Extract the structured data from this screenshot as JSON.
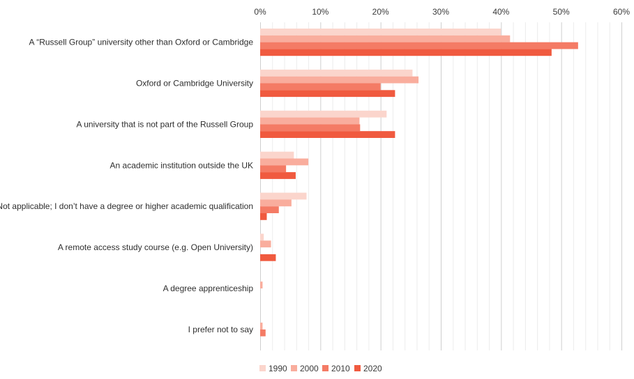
{
  "chart_data": {
    "type": "bar",
    "orientation": "horizontal",
    "title": "",
    "xlabel": "",
    "ylabel": "",
    "xlim": [
      0,
      60
    ],
    "x_ticks": [
      0,
      10,
      20,
      30,
      40,
      50,
      60
    ],
    "x_tick_labels": [
      "0%",
      "10%",
      "20%",
      "30%",
      "40%",
      "50%",
      "60%"
    ],
    "grid": true,
    "legend_position": "bottom",
    "categories": [
      "A “Russell Group” university other than Oxford or Cambridge",
      "Oxford or Cambridge University",
      "A university that is not part of the Russell Group",
      "An academic institution outside the UK",
      "Not applicable; I don’t have a degree or higher academic qualification",
      "A remote access study course (e.g. Open University)",
      "A degree apprenticeship",
      "I prefer not to say"
    ],
    "series": [
      {
        "name": "1990",
        "color": "#fbd5cc",
        "values": [
          40.0,
          25.3,
          21.0,
          5.6,
          7.7,
          0.6,
          0.0,
          0.0
        ]
      },
      {
        "name": "2000",
        "color": "#f9ad9d",
        "values": [
          41.5,
          26.3,
          16.5,
          8.0,
          5.2,
          1.8,
          0.4,
          0.4
        ]
      },
      {
        "name": "2010",
        "color": "#f47b65",
        "values": [
          52.8,
          20.0,
          16.6,
          4.3,
          3.1,
          0.0,
          0.0,
          0.9
        ]
      },
      {
        "name": "2020",
        "color": "#f05a3f",
        "values": [
          48.4,
          22.4,
          22.4,
          5.9,
          1.1,
          2.6,
          0.0,
          0.0
        ]
      }
    ]
  }
}
